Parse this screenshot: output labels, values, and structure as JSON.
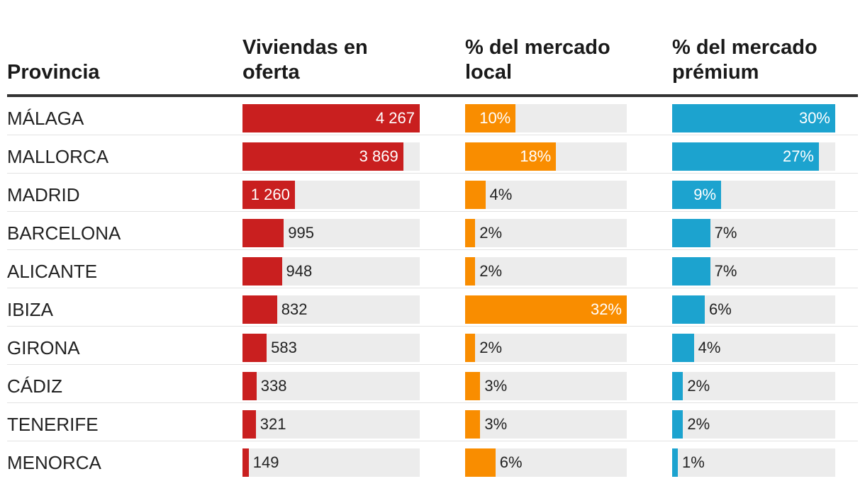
{
  "chart_data": {
    "type": "table",
    "headers": {
      "province": "Provincia",
      "listings": "Viviendas en oferta",
      "local": "% del mercado local",
      "premium": "% del mercado prémium"
    },
    "colors": {
      "listings": "#c91f1f",
      "local": "#f98d00",
      "premium": "#1ca3cf",
      "track": "#ececec"
    },
    "rows": [
      {
        "province": "MÁLAGA",
        "listings": 4267,
        "listings_label": "4 267",
        "local": 10,
        "local_label": "10%",
        "premium": 30,
        "premium_label": "30%"
      },
      {
        "province": "MALLORCA",
        "listings": 3869,
        "listings_label": "3 869",
        "local": 18,
        "local_label": "18%",
        "premium": 27,
        "premium_label": "27%"
      },
      {
        "province": "MADRID",
        "listings": 1260,
        "listings_label": "1 260",
        "local": 4,
        "local_label": "4%",
        "premium": 9,
        "premium_label": "9%"
      },
      {
        "province": "BARCELONA",
        "listings": 995,
        "listings_label": "995",
        "local": 2,
        "local_label": "2%",
        "premium": 7,
        "premium_label": "7%"
      },
      {
        "province": "ALICANTE",
        "listings": 948,
        "listings_label": "948",
        "local": 2,
        "local_label": "2%",
        "premium": 7,
        "premium_label": "7%"
      },
      {
        "province": "IBIZA",
        "listings": 832,
        "listings_label": "832",
        "local": 32,
        "local_label": "32%",
        "premium": 6,
        "premium_label": "6%"
      },
      {
        "province": "GIRONA",
        "listings": 583,
        "listings_label": "583",
        "local": 2,
        "local_label": "2%",
        "premium": 4,
        "premium_label": "4%"
      },
      {
        "province": "CÁDIZ",
        "listings": 338,
        "listings_label": "338",
        "local": 3,
        "local_label": "3%",
        "premium": 2,
        "premium_label": "2%"
      },
      {
        "province": "TENERIFE",
        "listings": 321,
        "listings_label": "321",
        "local": 3,
        "local_label": "3%",
        "premium": 2,
        "premium_label": "2%"
      },
      {
        "province": "MENORCA",
        "listings": 149,
        "listings_label": "149",
        "local": 6,
        "local_label": "6%",
        "premium": 1,
        "premium_label": "1%"
      }
    ]
  }
}
